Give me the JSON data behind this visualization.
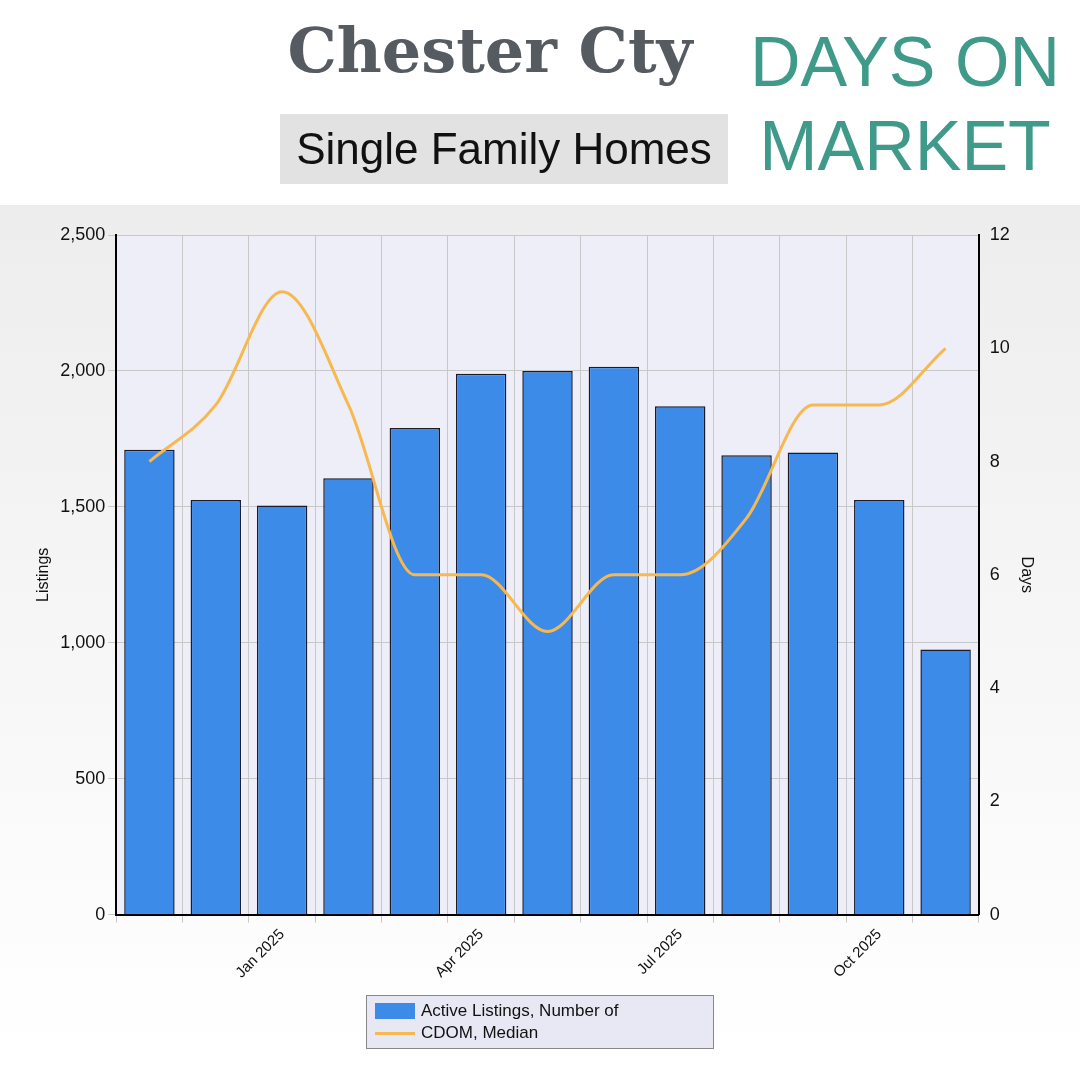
{
  "chart_data": {
    "type": "bar",
    "title": "Chester Cty",
    "subtitle": "Single Family Homes",
    "annotations": [
      "DAYS ON MARKET"
    ],
    "ylabel": "Listings",
    "y2label": "Days",
    "categories": [
      null,
      null,
      "Jan 2025",
      null,
      null,
      "Apr 2025",
      null,
      null,
      "Jul 2025",
      null,
      null,
      "Oct 2025",
      null
    ],
    "series": [
      {
        "name": "Active Listings, Number of",
        "color": "#3d8be8",
        "values": [
          1710,
          1525,
          1505,
          1605,
          1790,
          1990,
          2000,
          2015,
          1870,
          1690,
          1700,
          1525,
          975
        ]
      },
      {
        "name": "CDOM, Median",
        "type": "line",
        "axis": "y2",
        "color": "#f7b84f",
        "values": [
          8,
          9,
          11,
          9,
          6,
          6,
          5,
          6,
          6,
          7,
          9,
          9,
          10
        ]
      }
    ],
    "ylim": [
      0,
      2500
    ],
    "yticks": [
      0,
      500,
      {
        "value": 1000,
        "label": "1,000"
      },
      {
        "value": 1500,
        "label": "1,500"
      },
      {
        "value": 2000,
        "label": "2,000"
      },
      {
        "value": 2500,
        "label": "2,500"
      }
    ],
    "y2lim": [
      0,
      12
    ],
    "y2ticks": [
      0,
      2,
      4,
      6,
      8,
      10,
      12
    ],
    "grid": true,
    "legend": "bottom",
    "marker": "none",
    "line_style": "solid"
  }
}
